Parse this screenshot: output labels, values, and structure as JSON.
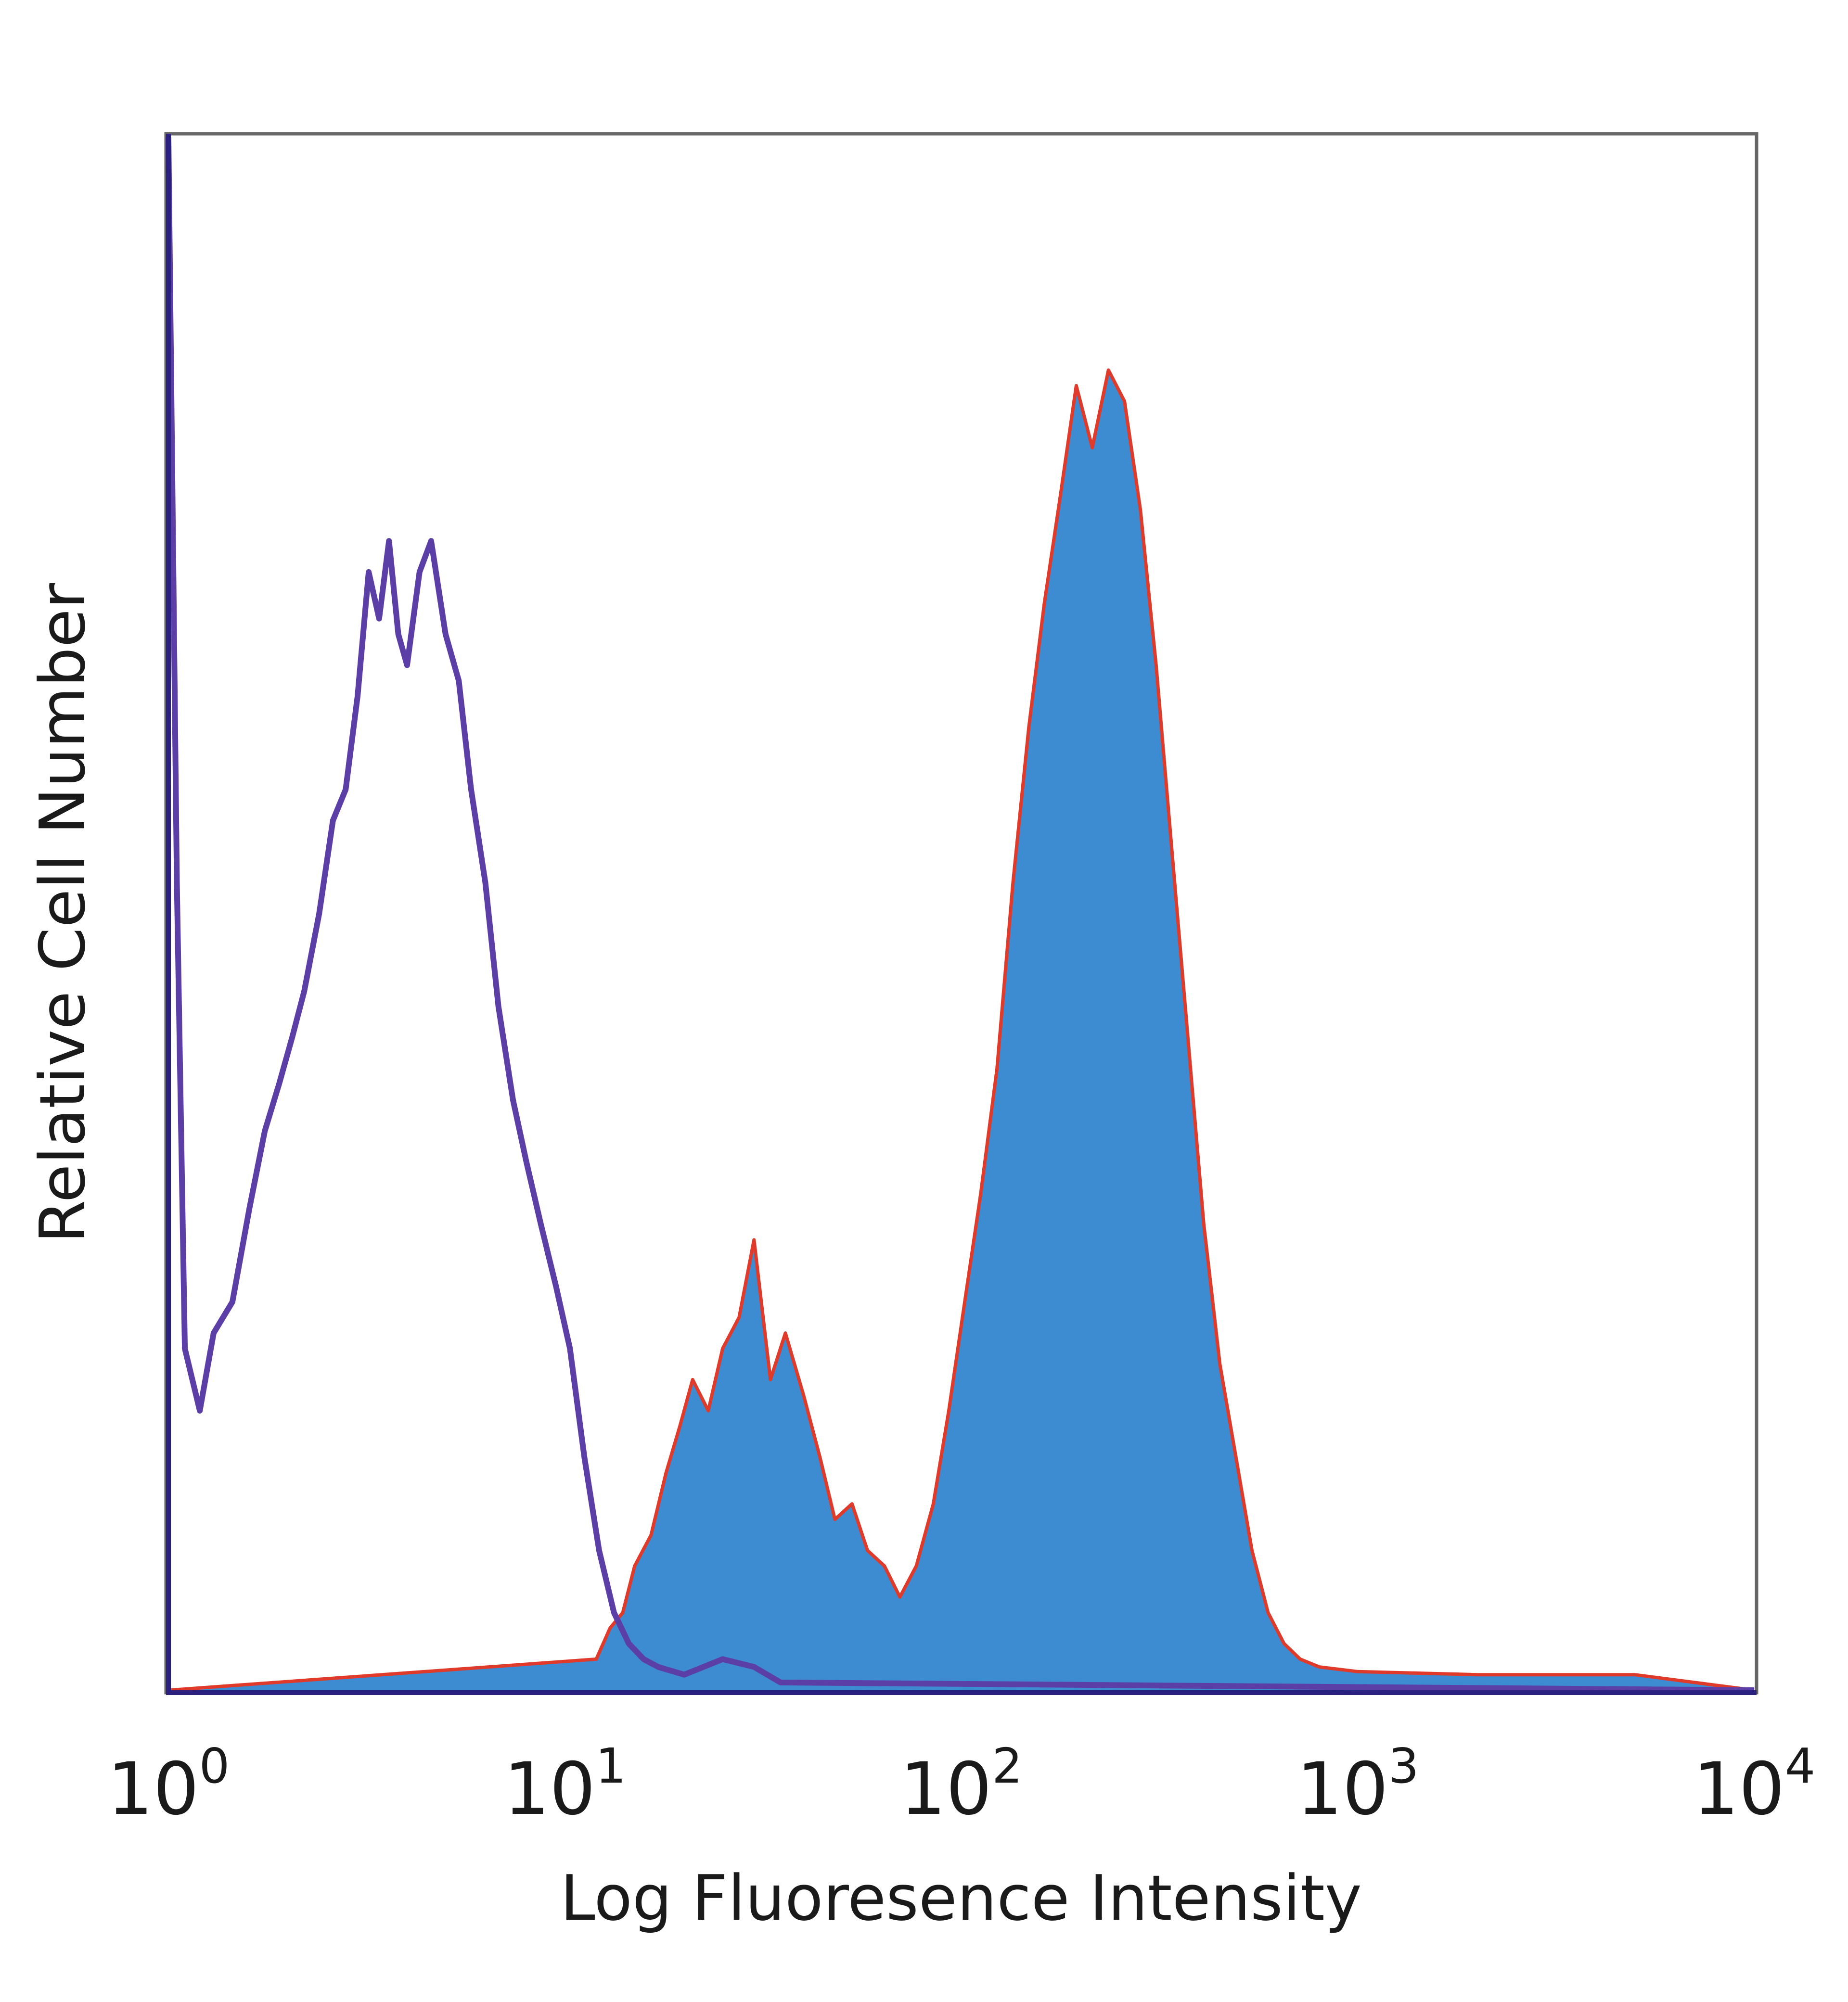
{
  "chart_data": {
    "type": "area",
    "title": "",
    "xlabel": "Log Fluoresence Intensity",
    "ylabel": "Relative Cell Number",
    "x_scale": "log",
    "xlim": [
      1,
      10000
    ],
    "ylim": [
      0,
      100
    ],
    "grid": false,
    "legend": "none",
    "x_ticks": [
      {
        "base": "10",
        "exp": "0",
        "value": 1
      },
      {
        "base": "10",
        "exp": "1",
        "value": 10
      },
      {
        "base": "10",
        "exp": "2",
        "value": 100
      },
      {
        "base": "10",
        "exp": "3",
        "value": 1000
      },
      {
        "base": "10",
        "exp": "4",
        "value": 10000
      }
    ],
    "series": [
      {
        "style": "outline",
        "color": "#5b3ea6",
        "x": [
          1.0,
          1.05,
          1.1,
          1.2,
          1.3,
          1.45,
          1.6,
          1.75,
          1.9,
          2.05,
          2.2,
          2.4,
          2.6,
          2.8,
          3.0,
          3.2,
          3.4,
          3.6,
          3.8,
          4.0,
          4.3,
          4.6,
          5.0,
          5.4,
          5.8,
          6.3,
          6.8,
          7.4,
          8.0,
          8.7,
          9.5,
          10.3,
          11.2,
          12.2,
          13.3,
          14.5,
          15.8,
          17.2,
          20.0,
          25.0,
          30.0,
          35.0,
          10000.0
        ],
        "y": [
          100,
          52,
          22,
          18,
          23,
          25,
          31,
          36,
          39,
          42,
          45,
          50,
          56,
          58,
          64,
          72,
          69,
          74,
          68,
          66,
          72,
          74,
          68,
          65,
          58,
          52,
          44,
          38,
          34,
          30,
          26,
          22,
          15,
          9,
          5,
          3,
          2,
          1.5,
          1,
          2,
          1.5,
          0.5,
          0
        ]
      },
      {
        "style": "filled",
        "color": "#3d8bd1",
        "edge_color": "#e03a2a",
        "x": [
          1.0,
          12.0,
          13.0,
          14.0,
          15.0,
          16.5,
          18.0,
          19.5,
          21.0,
          23.0,
          25.0,
          27.5,
          30.0,
          33.0,
          36.0,
          40.0,
          44.0,
          48.0,
          53.0,
          58.0,
          64.0,
          70.0,
          77.0,
          85.0,
          93.0,
          102.0,
          112.0,
          123.0,
          135.0,
          148.0,
          162.0,
          178.0,
          195.0,
          214.0,
          235.0,
          258.0,
          283.0,
          310.0,
          340.0,
          373.0,
          409.0,
          449.0,
          493.0,
          541.0,
          594.0,
          652.0,
          716.0,
          800.0,
          1000.0,
          2000.0,
          5000.0,
          10000.0
        ],
        "y": [
          0,
          2,
          4,
          5,
          8,
          10,
          14,
          17,
          20,
          18,
          22,
          24,
          29,
          20,
          23,
          19,
          15,
          11,
          12,
          9,
          8,
          6,
          8,
          12,
          18,
          25,
          32,
          40,
          52,
          62,
          70,
          77,
          84,
          80,
          85,
          83,
          76,
          66,
          54,
          42,
          30,
          21,
          15,
          9,
          5,
          3,
          2,
          1.5,
          1.2,
          1.0,
          1.0,
          0
        ]
      }
    ]
  }
}
